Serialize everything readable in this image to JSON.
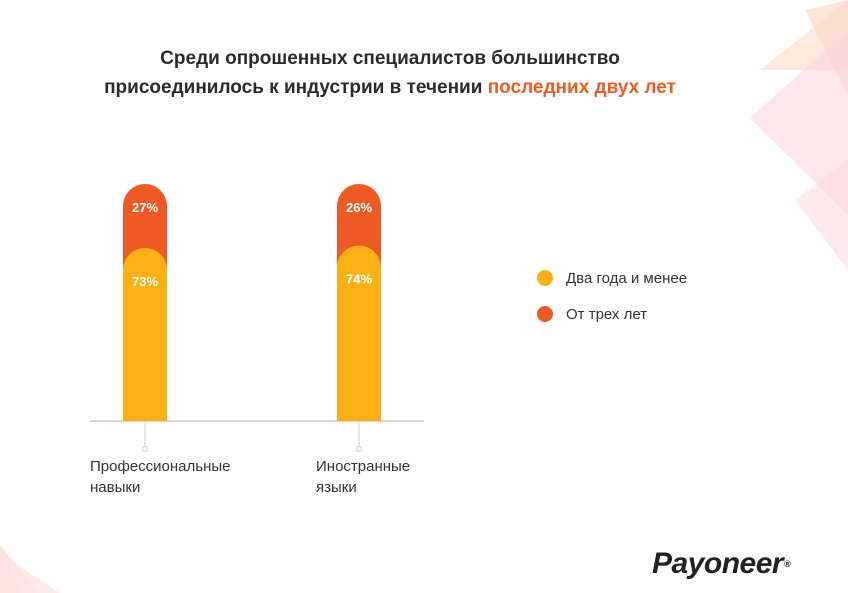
{
  "title": {
    "line1": "Среди опрошенных специалистов большинство",
    "line2_prefix": "присоединилось к индустрии в течении ",
    "line2_accent": "последних двух лет"
  },
  "colors": {
    "recent": "#fbb116",
    "older": "#ee5a24",
    "accent_text": "#ee5a24"
  },
  "chart_data": {
    "type": "bar",
    "stacked": true,
    "categories": [
      "Профессиональные навыки",
      "Иностранные языки"
    ],
    "category_lines": [
      [
        "Профессиональные",
        "навыки"
      ],
      [
        "Иностранные",
        "языки"
      ]
    ],
    "series": [
      {
        "name": "Два года и менее",
        "values": [
          73,
          74
        ],
        "color": "#fbb116"
      },
      {
        "name": "От трех лет",
        "values": [
          27,
          26
        ],
        "color": "#ee5a24"
      }
    ],
    "data_labels": [
      [
        "73%",
        "74%"
      ],
      [
        "27%",
        "26%"
      ]
    ],
    "ylim": [
      0,
      100
    ],
    "legend_position": "right",
    "grid": false
  },
  "logo": {
    "text": "Payoneer",
    "registered": "®"
  }
}
